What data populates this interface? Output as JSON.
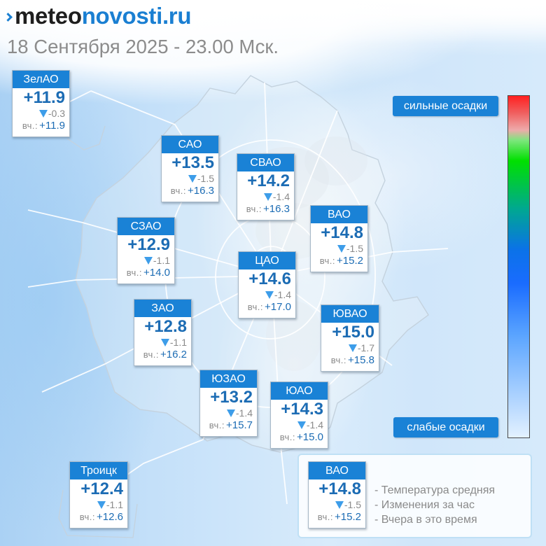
{
  "logo": {
    "part1": "meteo",
    "part2": "novosti.ru"
  },
  "header": {
    "date": "18 Сентября 2025 - 23.00 Мск."
  },
  "labels": {
    "yesterday": "вч.:"
  },
  "icons": {
    "logo_mark": "logo-chevron-icon",
    "trend": "triangle-down-icon"
  },
  "colors": {
    "accent": "#1a82d6",
    "temperature": "#1c6cb4",
    "trend": "#3d9de9",
    "muted": "#8a8a8a",
    "logo_dark": "#1e1e1e",
    "logo_blue": "#1a7fd2"
  },
  "districts": [
    {
      "name": "ЗелАО",
      "temp": "+11.9",
      "change": "-0.3",
      "yesterday": "+11.9"
    },
    {
      "name": "САО",
      "temp": "+13.5",
      "change": "-1.5",
      "yesterday": "+16.3"
    },
    {
      "name": "СВАО",
      "temp": "+14.2",
      "change": "-1.4",
      "yesterday": "+16.3"
    },
    {
      "name": "ВАО",
      "temp": "+14.8",
      "change": "-1.5",
      "yesterday": "+15.2"
    },
    {
      "name": "СЗАО",
      "temp": "+12.9",
      "change": "-1.1",
      "yesterday": "+14.0"
    },
    {
      "name": "ЦАО",
      "temp": "+14.6",
      "change": "-1.4",
      "yesterday": "+17.0"
    },
    {
      "name": "ЗАО",
      "temp": "+12.8",
      "change": "-1.1",
      "yesterday": "+16.2"
    },
    {
      "name": "ЮВАО",
      "temp": "+15.0",
      "change": "-1.7",
      "yesterday": "+15.8"
    },
    {
      "name": "ЮЗАО",
      "temp": "+13.2",
      "change": "-1.4",
      "yesterday": "+15.7"
    },
    {
      "name": "ЮАО",
      "temp": "+14.3",
      "change": "-1.4",
      "yesterday": "+15.0"
    },
    {
      "name": "Троицк",
      "temp": "+12.4",
      "change": "-1.1",
      "yesterday": "+12.6"
    }
  ],
  "legend": {
    "sample": {
      "name": "ВАО",
      "temp": "+14.8",
      "change": "-1.5",
      "yesterday": "+15.2"
    },
    "lines": [
      "- Температура средняя",
      "- Изменения за час",
      "- Вчера в это время"
    ]
  },
  "precip_scale": {
    "high_label": "сильные осадки",
    "low_label": "слабые осадки",
    "gradient_colors": [
      "#ff2020",
      "#f06060",
      "#eeaaaa",
      "#7ce67c",
      "#00e000",
      "#00a890",
      "#0b72e8",
      "#1a6cff",
      "#5aa4ff",
      "#e3f1ff"
    ]
  }
}
